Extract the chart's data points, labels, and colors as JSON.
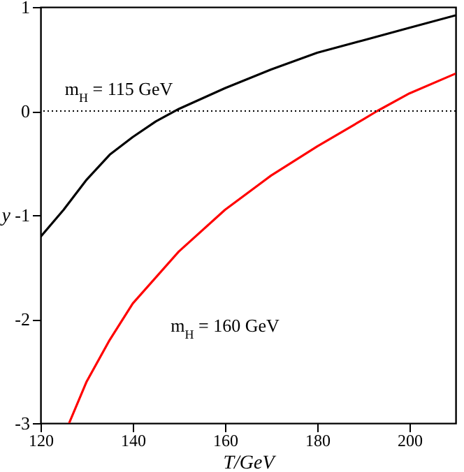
{
  "chart_data": {
    "type": "line",
    "xlabel": "T/GeV",
    "ylabel": "y",
    "xlim": [
      120,
      210
    ],
    "xticks": [
      120,
      140,
      160,
      180,
      200
    ],
    "ylim": [
      -3,
      1
    ],
    "yticks": [
      -3,
      -2,
      -1,
      0,
      1
    ],
    "line_style": "solid",
    "ref_lines": [
      {
        "axis": "y",
        "value": 0,
        "color": "#000000",
        "line_style": "dotted"
      }
    ],
    "series": [
      {
        "name": "m$_{H}$ = 115 GeV",
        "color": "#000000",
        "x": [
          120,
          125,
          130,
          135,
          140,
          145,
          150,
          160,
          170,
          180,
          190,
          200,
          210
        ],
        "values": [
          -1.21,
          -0.95,
          -0.66,
          -0.42,
          -0.25,
          -0.1,
          0.02,
          0.22,
          0.4,
          0.56,
          0.68,
          0.8,
          0.92
        ]
      },
      {
        "name": "m$_{H}$ = 160 GeV",
        "color": "#ff0000",
        "x": [
          126.2,
          130,
          135,
          140,
          150,
          160,
          170,
          180,
          190,
          193,
          200,
          210
        ],
        "values": [
          -3,
          -2.6,
          -2.2,
          -1.85,
          -1.35,
          -0.95,
          -0.62,
          -0.34,
          -0.08,
          0,
          0.17,
          0.36
        ]
      }
    ]
  }
}
